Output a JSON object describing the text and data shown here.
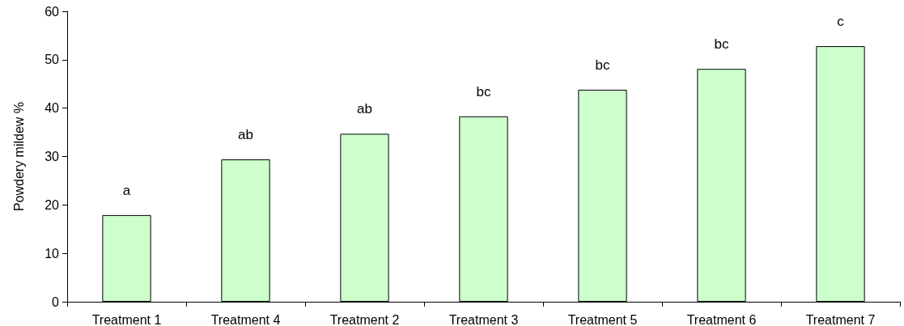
{
  "chart_data": {
    "type": "bar",
    "ylabel": "Powdery mildew %",
    "categories": [
      "Treatment 1",
      "Treatment 4",
      "Treatment 2",
      "Treatment 3",
      "Treatment 5",
      "Treatment 6",
      "Treatment 7"
    ],
    "values": [
      17.9,
      29.4,
      34.7,
      38.3,
      43.8,
      48.1,
      52.8
    ],
    "value_labels": [
      "a",
      "ab",
      "ab",
      "bc",
      "bc",
      "bc",
      "c"
    ],
    "color": "#ccffcc",
    "ylim": [
      0,
      60
    ],
    "yticks": [
      0,
      10,
      20,
      30,
      40,
      50,
      60
    ],
    "grid": false
  }
}
